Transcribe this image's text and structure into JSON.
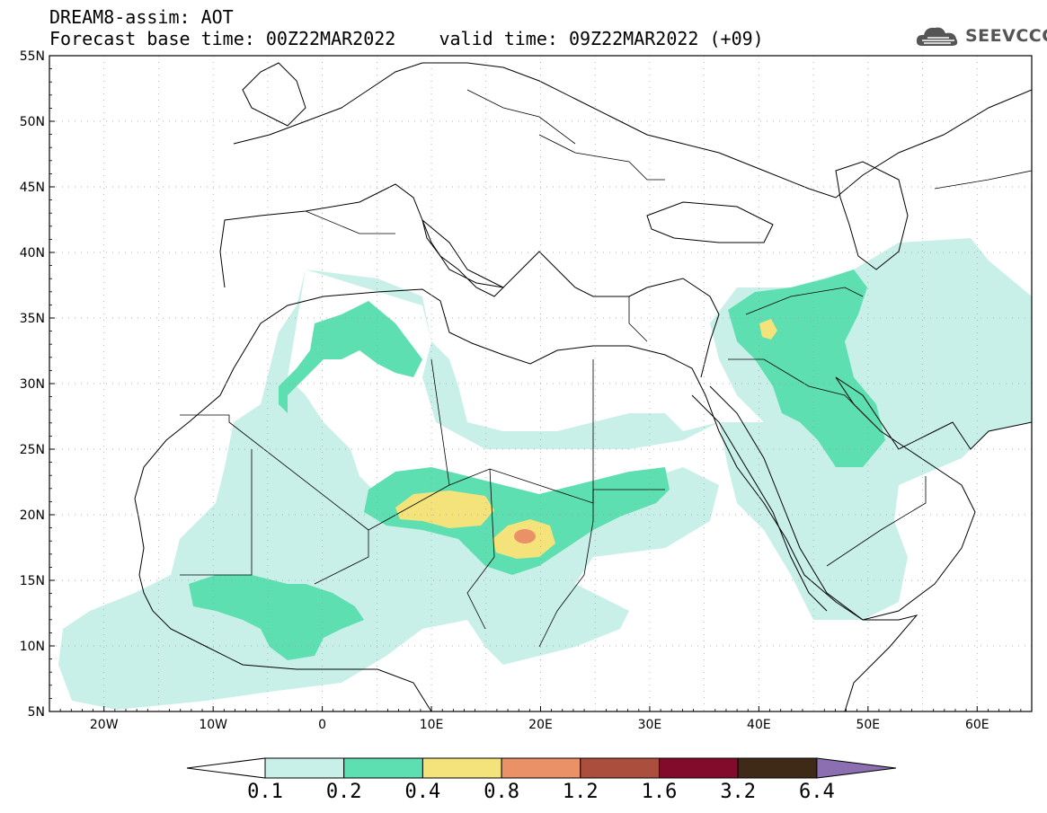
{
  "header": {
    "title_line1": "DREAM8-assim: AOT",
    "title_line2": "Forecast base time: 00Z22MAR2022    valid time: 09Z22MAR2022 (+09)"
  },
  "logo": {
    "text": "SEEVCCC",
    "icon": "cloud-icon"
  },
  "map": {
    "lat_labels": [
      "55N",
      "50N",
      "45N",
      "40N",
      "35N",
      "30N",
      "25N",
      "20N",
      "15N",
      "10N",
      "5N"
    ],
    "lon_labels": [
      "20W",
      "10W",
      "0",
      "10E",
      "20E",
      "30E",
      "40E",
      "50E",
      "60E"
    ],
    "lon_range": [
      -25,
      65
    ],
    "lat_range": [
      5,
      55
    ]
  },
  "colorbar": {
    "labels": [
      "0.1",
      "0.2",
      "0.4",
      "0.8",
      "1.2",
      "1.6",
      "3.2",
      "6.4"
    ],
    "colors": [
      "#c9f0e8",
      "#5edfb1",
      "#f3e37a",
      "#ea9167",
      "#ab4e3e",
      "#820a2a",
      "#3f2a17",
      "#8c6fb0"
    ]
  },
  "palette": {
    "aot_0_1": "#c9f0e8",
    "aot_0_2": "#5edfb1",
    "aot_0_4": "#f3e37a",
    "aot_0_8": "#ea9167",
    "border": "#000000"
  }
}
